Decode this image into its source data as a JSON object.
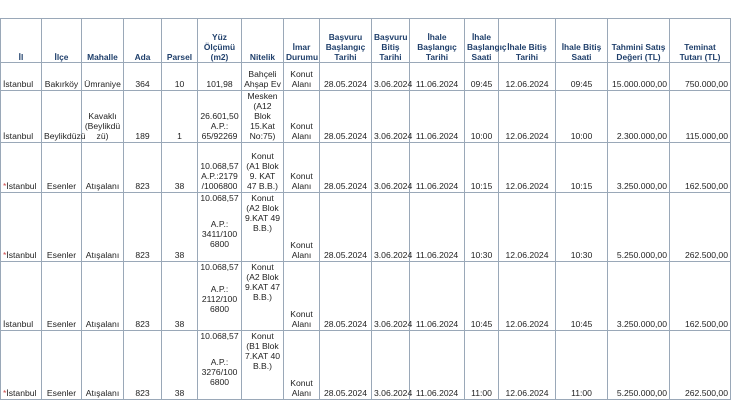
{
  "headers": {
    "il": "İl",
    "ilce": "İlçe",
    "mahalle": "Mahalle",
    "ada": "Ada",
    "parsel": "Parsel",
    "yuz_olcumu": "Yüz Ölçümü (m2)",
    "nitelik": "Nitelik",
    "imar": "İmar Durumu",
    "bas_baslangic": "Başvuru Başlangıç Tarihi",
    "bas_bitis": "Başvuru Bitiş Tarihi",
    "ihale_bas_tarih": "İhale Başlangıç Tarihi",
    "ihale_bas_saat": "İhale Başlangıç Saati",
    "ihale_bit_tarih": "İhale Bitiş Tarihi",
    "ihale_bit_saat": "İhale Bitiş Saati",
    "tahmini": "Tahmini Satış Değeri (TL)",
    "teminat": "Teminat Tutarı (TL)"
  },
  "rows": [
    {
      "mark": "",
      "il": "İstanbul",
      "ilce": "Bakırköy",
      "mahalle": "Ümraniye",
      "ada": "364",
      "parsel": "10",
      "yuz_olcumu": "101,98",
      "nitelik": "Bahçeli Ahşap Ev",
      "imar": "Konut Alanı",
      "bas_baslangic": "28.05.2024",
      "bas_bitis": "3.06.2024",
      "ihale_bas_tarih": "11.06.2024",
      "ihale_bas_saat": "09:45",
      "ihale_bit_tarih": "12.06.2024",
      "ihale_bit_saat": "09:45",
      "tahmini": "15.000.000,00",
      "teminat": "750.000,00"
    },
    {
      "mark": "",
      "il": "İstanbul",
      "ilce": "Beylikdüzü",
      "mahalle": "Kavaklı (Beylikdü zü)",
      "ada": "189",
      "parsel": "1",
      "yuz_olcumu": "26.601,50 A.P.: 65/92269",
      "nitelik": "Mesken (A12 Blok 15.Kat No:75)",
      "imar": "Konut Alanı",
      "bas_baslangic": "28.05.2024",
      "bas_bitis": "3.06.2024",
      "ihale_bas_tarih": "11.06.2024",
      "ihale_bas_saat": "10:00",
      "ihale_bit_tarih": "12.06.2024",
      "ihale_bit_saat": "10:00",
      "tahmini": "2.300.000,00",
      "teminat": "115.000,00"
    },
    {
      "mark": "*",
      "il": "İstanbul",
      "ilce": "Esenler",
      "mahalle": "Atışalanı",
      "ada": "823",
      "parsel": "38",
      "yuz_olcumu": "10.068,57 A.P.:2179 /1006800",
      "nitelik": "Konut (A1 Blok 9. KAT 47 B.B.)",
      "imar": "Konut Alanı",
      "bas_baslangic": "28.05.2024",
      "bas_bitis": "3.06.2024",
      "ihale_bas_tarih": "11.06.2024",
      "ihale_bas_saat": "10:15",
      "ihale_bit_tarih": "12.06.2024",
      "ihale_bit_saat": "10:15",
      "tahmini": "3.250.000,00",
      "teminat": "162.500,00"
    },
    {
      "mark": "*",
      "il": "İstanbul",
      "ilce": "Esenler",
      "mahalle": "Atışalanı",
      "ada": "823",
      "parsel": "38",
      "yuz_olcumu_a": "10.068,57",
      "yuz_olcumu_b": "A.P.: 3411/100 6800",
      "nitelik": "Konut (A2 Blok 9.KAT 49 B.B.)",
      "imar": "Konut Alanı",
      "bas_baslangic": "28.05.2024",
      "bas_bitis": "3.06.2024",
      "ihale_bas_tarih": "11.06.2024",
      "ihale_bas_saat": "10:30",
      "ihale_bit_tarih": "12.06.2024",
      "ihale_bit_saat": "10:30",
      "tahmini": "5.250.000,00",
      "teminat": "262.500,00"
    },
    {
      "mark": "",
      "il": "İstanbul",
      "ilce": "Esenler",
      "mahalle": "Atışalanı",
      "ada": "823",
      "parsel": "38",
      "yuz_olcumu_a": "10.068,57",
      "yuz_olcumu_b": "A.P.: 2112/100 6800",
      "nitelik": "Konut (A2 Blok 9.KAT 47 B.B.)",
      "imar": "Konut Alanı",
      "bas_baslangic": "28.05.2024",
      "bas_bitis": "3.06.2024",
      "ihale_bas_tarih": "11.06.2024",
      "ihale_bas_saat": "10:45",
      "ihale_bit_tarih": "12.06.2024",
      "ihale_bit_saat": "10:45",
      "tahmini": "3.250.000,00",
      "teminat": "162.500,00"
    },
    {
      "mark": "*",
      "il": "İstanbul",
      "ilce": "Esenler",
      "mahalle": "Atışalanı",
      "ada": "823",
      "parsel": "38",
      "yuz_olcumu_a": "10.068,57",
      "yuz_olcumu_b": "A.P.: 3276/100 6800",
      "nitelik": "Konut (B1 Blok 7.KAT 40 B.B.)",
      "imar": "Konut Alanı",
      "bas_baslangic": "28.05.2024",
      "bas_bitis": "3.06.2024",
      "ihale_bas_tarih": "11.06.2024",
      "ihale_bas_saat": "11:00",
      "ihale_bit_tarih": "12.06.2024",
      "ihale_bit_saat": "11:00",
      "tahmini": "5.250.000,00",
      "teminat": "262.500,00"
    }
  ]
}
